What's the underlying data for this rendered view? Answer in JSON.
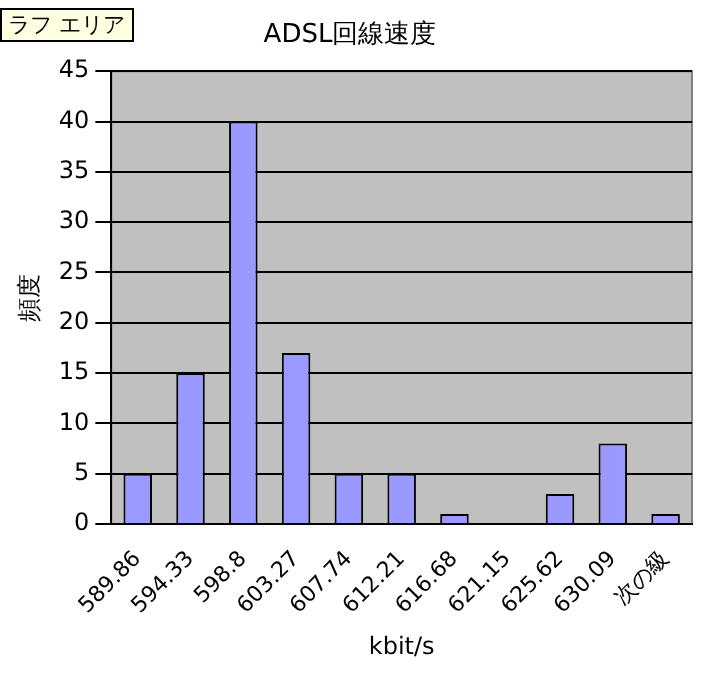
{
  "chart_data": {
    "type": "bar",
    "title": "ADSL回線速度",
    "xlabel": "kbit/s",
    "ylabel": "頻度",
    "categories": [
      "589.86",
      "594.33",
      "598.8",
      "603.27",
      "607.74",
      "612.21",
      "616.68",
      "621.15",
      "625.62",
      "630.09",
      "次の級"
    ],
    "values": [
      5,
      15,
      40,
      17,
      5,
      5,
      1,
      0,
      3,
      8,
      1
    ],
    "color": "#9999ff",
    "ylim": [
      0,
      45
    ],
    "yticks": [
      0,
      5,
      10,
      15,
      20,
      25,
      30,
      35,
      40,
      45
    ],
    "grid": "y",
    "legend": false,
    "annotations": [
      "ラフ エリア"
    ]
  }
}
